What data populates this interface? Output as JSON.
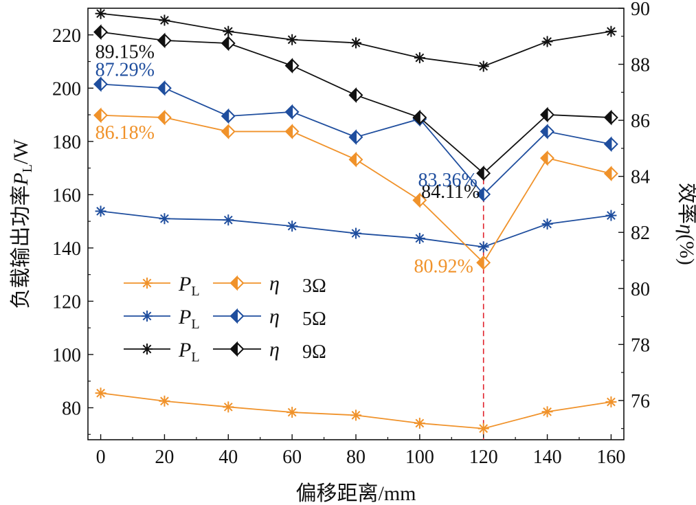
{
  "chart_data": {
    "type": "line",
    "title": "",
    "x": [
      0,
      20,
      40,
      60,
      80,
      100,
      120,
      140,
      160
    ],
    "xlabel": "偏移距离/mm",
    "xlim": [
      -4,
      164
    ],
    "xticks": [
      "0",
      "20",
      "40",
      "60",
      "80",
      "100",
      "120",
      "140",
      "160"
    ],
    "ylabel_left": {
      "prefix": "负载输出功率",
      "symbol": "P",
      "sub": "L",
      "suffix": "/W"
    },
    "ylim_left": [
      68,
      230
    ],
    "yticks_left": [
      "80",
      "100",
      "120",
      "140",
      "160",
      "180",
      "200",
      "220"
    ],
    "ylabel_right": {
      "prefix": "效率",
      "symbol": "η",
      "suffix": "(%)"
    },
    "ylim_right": [
      74.6,
      90
    ],
    "yticks_right": [
      "76",
      "78",
      "80",
      "82",
      "84",
      "86",
      "88",
      "90"
    ],
    "colors": {
      "3": "#f0922a",
      "5": "#1f4e9e",
      "9": "#111111",
      "marker_line": "#e0202a"
    },
    "series": [
      {
        "name": "P_L 3Ω",
        "load": "3",
        "axis": "left",
        "marker": "asterisk",
        "values": [
          85.5,
          82.5,
          80.3,
          78.3,
          77.2,
          74.2,
          72.2,
          78.5,
          82.2
        ]
      },
      {
        "name": "P_L 5Ω",
        "load": "5",
        "axis": "left",
        "marker": "asterisk",
        "values": [
          153.8,
          151.0,
          150.5,
          148.2,
          145.5,
          143.6,
          140.4,
          149.0,
          152.2
        ]
      },
      {
        "name": "P_L 9Ω",
        "load": "9",
        "axis": "left",
        "marker": "asterisk",
        "values": [
          228.0,
          225.5,
          221.3,
          218.2,
          217.0,
          211.4,
          208.2,
          217.5,
          221.3
        ]
      },
      {
        "name": "η 3Ω",
        "load": "3",
        "axis": "right",
        "marker": "diamond",
        "values": [
          86.18,
          86.1,
          85.6,
          85.6,
          84.6,
          83.15,
          80.92,
          84.65,
          84.1
        ]
      },
      {
        "name": "η 5Ω",
        "load": "5",
        "axis": "right",
        "marker": "diamond",
        "values": [
          87.29,
          87.15,
          86.15,
          86.3,
          85.4,
          86.05,
          83.36,
          85.6,
          85.15
        ]
      },
      {
        "name": "η 9Ω",
        "load": "9",
        "axis": "right",
        "marker": "diamond",
        "values": [
          89.15,
          88.85,
          88.75,
          87.95,
          86.9,
          86.1,
          84.11,
          86.2,
          86.1
        ]
      }
    ],
    "reference_line": {
      "x": 120
    },
    "annotations": [
      {
        "text": "89.15%",
        "load": "9",
        "x": 0,
        "y": 89.15
      },
      {
        "text": "87.29%",
        "load": "5",
        "x": 0,
        "y": 87.29
      },
      {
        "text": "86.18%",
        "load": "3",
        "x": 0,
        "y": 86.18
      },
      {
        "text": "84.11%",
        "load": "9",
        "x": 120,
        "y": 84.11
      },
      {
        "text": "83.36%",
        "load": "5",
        "x": 120,
        "y": 83.36
      },
      {
        "text": "80.92%",
        "load": "3",
        "x": 120,
        "y": 80.92
      }
    ],
    "legend": {
      "position": "lower-left",
      "p_symbol": "P",
      "p_sub": "L",
      "eta_symbol": "η",
      "rows": [
        {
          "load": "3",
          "label": "3Ω"
        },
        {
          "load": "5",
          "label": "5Ω"
        },
        {
          "load": "9",
          "label": "9Ω"
        }
      ]
    }
  }
}
